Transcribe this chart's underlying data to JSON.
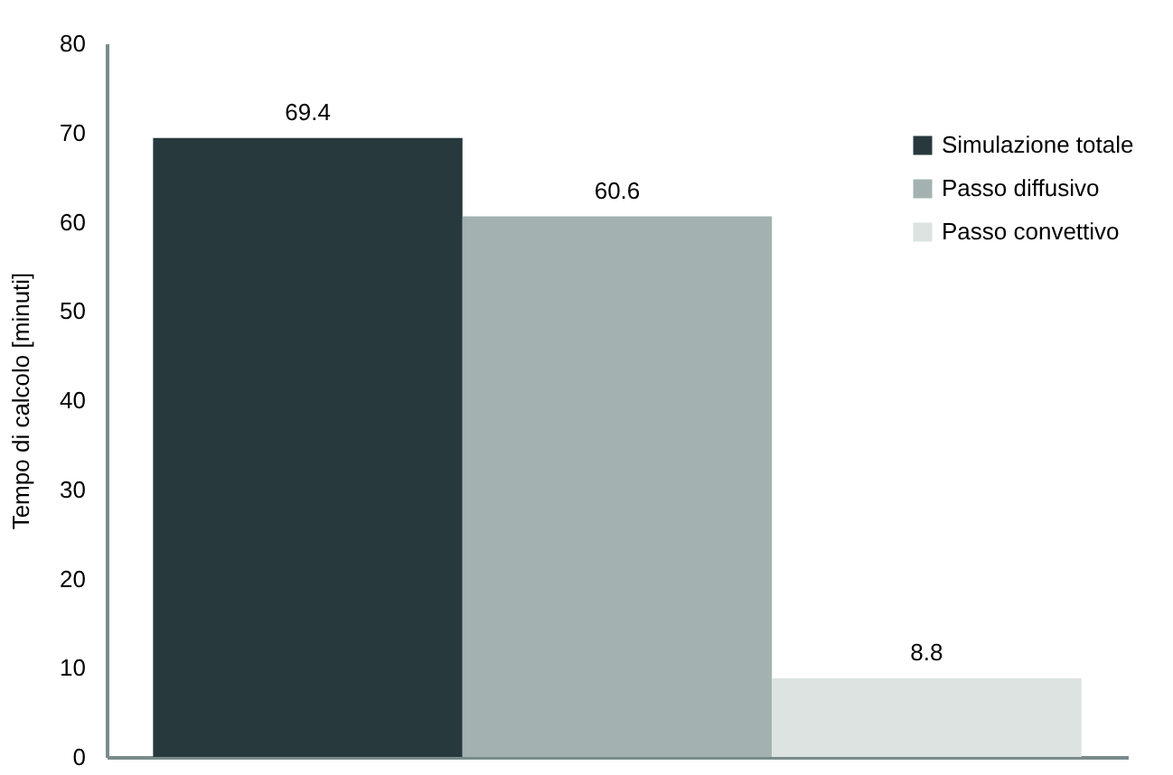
{
  "chart_data": {
    "type": "bar",
    "ylabel": "Tempo di calcolo [minuti]",
    "categories": [
      null
    ],
    "series": [
      {
        "name": "Simulazione totale",
        "color": "#27393d",
        "values": [
          69.4
        ]
      },
      {
        "name": "Passo diffusivo",
        "color": "#a3b2b1",
        "values": [
          60.6
        ]
      },
      {
        "name": "Passo convettivo",
        "color": "#dce3e1",
        "values": [
          8.8
        ]
      }
    ],
    "ylim": [
      0,
      80
    ],
    "yticks": [
      0,
      10,
      20,
      30,
      40,
      50,
      60,
      70,
      80
    ],
    "grid": false,
    "legend": "top right",
    "data_labels": true
  }
}
